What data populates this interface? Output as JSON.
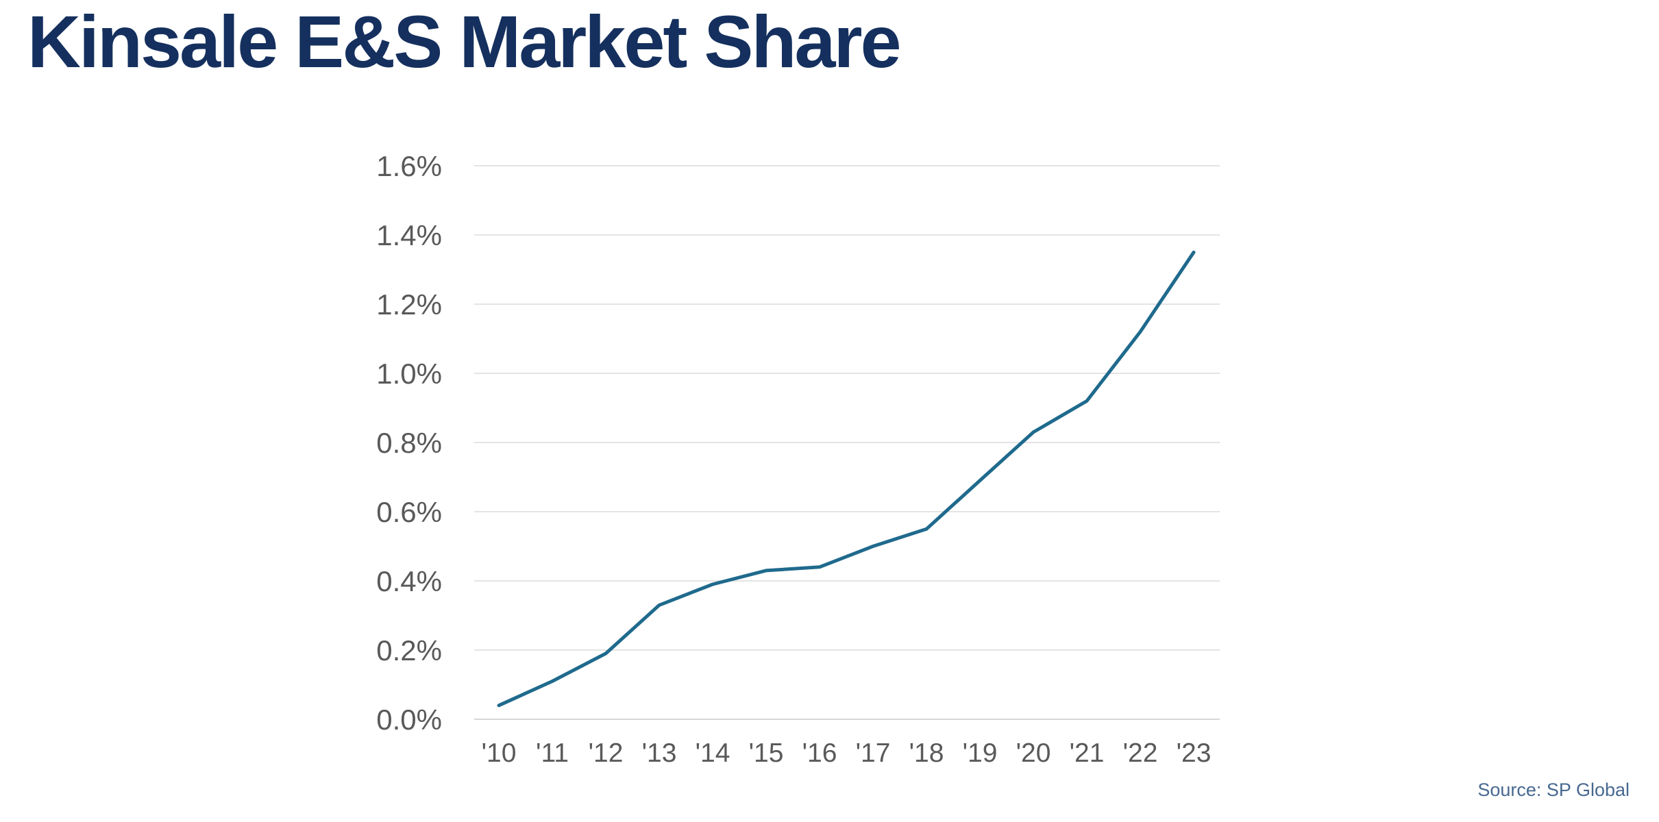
{
  "header": {
    "title": "Kinsale E&S Market Share"
  },
  "footer": {
    "source": "Source: SP Global"
  },
  "colors": {
    "title_navy": "#15305e",
    "line_teal": "#1f6a8d",
    "gridline_gray": "#e4e4e4",
    "zero_line_gray": "#d7d7d7",
    "axis_text_gray": "#595959",
    "source_blue": "#47688f"
  },
  "chart_data": {
    "type": "line",
    "title": "Kinsale E&S Market Share",
    "categories": [
      "'10",
      "'11",
      "'12",
      "'13",
      "'14",
      "'15",
      "'16",
      "'17",
      "'18",
      "'19",
      "'20",
      "'21",
      "'22",
      "'23"
    ],
    "series": [
      {
        "name": "Kinsale E&S market share",
        "values": [
          0.04,
          0.11,
          0.19,
          0.33,
          0.39,
          0.43,
          0.44,
          0.5,
          0.55,
          0.69,
          0.83,
          0.92,
          1.12,
          1.35
        ]
      }
    ],
    "xlabel": "",
    "ylabel": "",
    "ylim": [
      0,
      1.6
    ],
    "ytick_values": [
      0,
      0.2,
      0.4,
      0.6,
      0.8,
      1.0,
      1.2,
      1.4,
      1.6
    ],
    "ytick_labels": [
      "0.0%",
      "0.2%",
      "0.4%",
      "0.6%",
      "0.8%",
      "1.0%",
      "1.2%",
      "1.4%",
      "1.6%"
    ],
    "grid": true,
    "legend": false,
    "source": "Source: SP Global"
  }
}
